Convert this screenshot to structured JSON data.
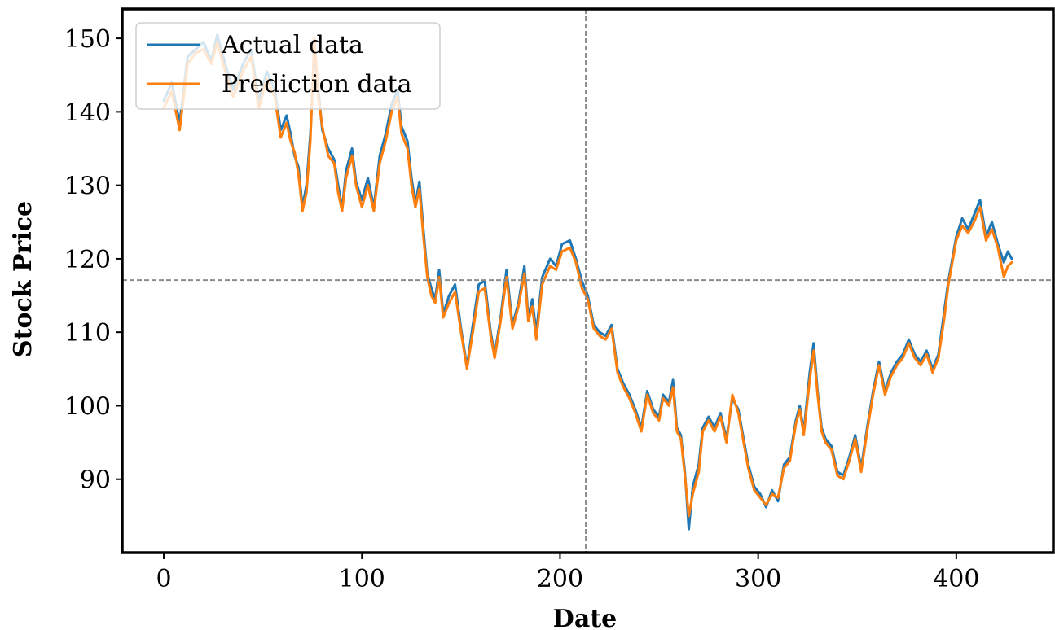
{
  "chart_data": {
    "type": "line",
    "title": "",
    "xlabel": "Date",
    "ylabel": "Stock Price",
    "xlim": [
      -21,
      449
    ],
    "ylim": [
      80,
      154
    ],
    "xticks": [
      0,
      100,
      200,
      300,
      400
    ],
    "yticks": [
      90,
      100,
      110,
      120,
      130,
      140,
      150
    ],
    "grid": false,
    "legend_position": "upper-left",
    "crosshair": {
      "x": 213,
      "y": 117.1
    },
    "series": [
      {
        "name": "Actual data",
        "color": "#1f77b4",
        "points": [
          [
            0,
            141.5
          ],
          [
            4,
            144.0
          ],
          [
            8,
            138.5
          ],
          [
            12,
            147.5
          ],
          [
            16,
            148.5
          ],
          [
            20,
            149.5
          ],
          [
            24,
            147.0
          ],
          [
            27,
            150.5
          ],
          [
            31,
            146.5
          ],
          [
            35,
            143.0
          ],
          [
            40,
            146.5
          ],
          [
            44,
            148.5
          ],
          [
            48,
            141.5
          ],
          [
            52,
            145.5
          ],
          [
            56,
            143.0
          ],
          [
            59,
            137.5
          ],
          [
            62,
            139.5
          ],
          [
            64,
            137.0
          ],
          [
            66,
            134.0
          ],
          [
            68,
            132.5
          ],
          [
            70,
            127.0
          ],
          [
            72,
            130.0
          ],
          [
            74,
            137.0
          ],
          [
            76,
            148.0
          ],
          [
            78,
            143.0
          ],
          [
            80,
            137.5
          ],
          [
            83,
            135.0
          ],
          [
            86,
            133.5
          ],
          [
            88,
            130.0
          ],
          [
            90,
            126.8
          ],
          [
            92,
            132.0
          ],
          [
            95,
            135.0
          ],
          [
            97,
            130.5
          ],
          [
            100,
            128.0
          ],
          [
            103,
            131.0
          ],
          [
            106,
            127.0
          ],
          [
            109,
            134.0
          ],
          [
            112,
            137.0
          ],
          [
            115,
            141.0
          ],
          [
            118,
            143.0
          ],
          [
            120,
            138.0
          ],
          [
            123,
            136.0
          ],
          [
            125,
            131.0
          ],
          [
            127,
            127.5
          ],
          [
            129,
            130.5
          ],
          [
            131,
            124.0
          ],
          [
            133,
            118.0
          ],
          [
            135,
            116.0
          ],
          [
            137,
            114.5
          ],
          [
            139,
            118.5
          ],
          [
            141,
            112.5
          ],
          [
            144,
            115.0
          ],
          [
            147,
            116.5
          ],
          [
            150,
            110.5
          ],
          [
            153,
            105.3
          ],
          [
            156,
            111.0
          ],
          [
            159,
            116.5
          ],
          [
            162,
            117.0
          ],
          [
            165,
            110.0
          ],
          [
            167,
            107.0
          ],
          [
            170,
            112.0
          ],
          [
            173,
            118.5
          ],
          [
            176,
            111.0
          ],
          [
            179,
            114.0
          ],
          [
            182,
            119.0
          ],
          [
            184,
            112.0
          ],
          [
            186,
            114.5
          ],
          [
            188,
            110.0
          ],
          [
            191,
            117.5
          ],
          [
            195,
            120.0
          ],
          [
            198,
            119.0
          ],
          [
            201,
            122.0
          ],
          [
            205,
            122.5
          ],
          [
            208,
            120.0
          ],
          [
            211,
            117.0
          ],
          [
            214,
            115.0
          ],
          [
            217,
            111.0
          ],
          [
            220,
            110.0
          ],
          [
            223,
            109.5
          ],
          [
            226,
            111.0
          ],
          [
            229,
            105.0
          ],
          [
            232,
            103.0
          ],
          [
            235,
            101.5
          ],
          [
            238,
            99.5
          ],
          [
            241,
            97.0
          ],
          [
            244,
            102.0
          ],
          [
            247,
            99.5
          ],
          [
            250,
            98.5
          ],
          [
            252,
            101.5
          ],
          [
            255,
            100.5
          ],
          [
            257,
            103.5
          ],
          [
            259,
            97.0
          ],
          [
            261,
            96.0
          ],
          [
            263,
            91.0
          ],
          [
            265,
            83.2
          ],
          [
            267,
            89.0
          ],
          [
            270,
            92.0
          ],
          [
            272,
            97.0
          ],
          [
            275,
            98.5
          ],
          [
            278,
            97.0
          ],
          [
            281,
            99.0
          ],
          [
            284,
            95.5
          ],
          [
            287,
            101.0
          ],
          [
            290,
            99.5
          ],
          [
            293,
            95.0
          ],
          [
            295,
            92.0
          ],
          [
            298,
            89.0
          ],
          [
            301,
            88.0
          ],
          [
            304,
            86.2
          ],
          [
            307,
            88.5
          ],
          [
            310,
            87.0
          ],
          [
            313,
            92.0
          ],
          [
            316,
            93.0
          ],
          [
            319,
            98.0
          ],
          [
            321,
            100.0
          ],
          [
            323,
            96.5
          ],
          [
            326,
            104.5
          ],
          [
            328,
            108.5
          ],
          [
            330,
            102.0
          ],
          [
            332,
            97.0
          ],
          [
            334,
            95.5
          ],
          [
            337,
            94.5
          ],
          [
            340,
            91.0
          ],
          [
            343,
            90.5
          ],
          [
            346,
            93.0
          ],
          [
            349,
            96.0
          ],
          [
            352,
            91.5
          ],
          [
            355,
            97.0
          ],
          [
            358,
            102.0
          ],
          [
            361,
            106.0
          ],
          [
            364,
            102.0
          ],
          [
            367,
            104.5
          ],
          [
            370,
            106.0
          ],
          [
            373,
            107.0
          ],
          [
            376,
            109.0
          ],
          [
            379,
            107.0
          ],
          [
            382,
            106.0
          ],
          [
            385,
            107.5
          ],
          [
            388,
            105.0
          ],
          [
            391,
            107.0
          ],
          [
            394,
            113.0
          ],
          [
            396,
            117.0
          ],
          [
            398,
            120.0
          ],
          [
            400,
            123.0
          ],
          [
            403,
            125.5
          ],
          [
            406,
            124.0
          ],
          [
            409,
            126.0
          ],
          [
            412,
            128.0
          ],
          [
            415,
            123.0
          ],
          [
            418,
            125.0
          ],
          [
            421,
            122.0
          ],
          [
            424,
            119.5
          ],
          [
            426,
            121.0
          ],
          [
            428,
            120.0
          ]
        ]
      },
      {
        "name": "Prediction data",
        "color": "#ff7f0e",
        "points": [
          [
            0,
            140.5
          ],
          [
            4,
            142.8
          ],
          [
            8,
            137.5
          ],
          [
            12,
            146.5
          ],
          [
            16,
            148.0
          ],
          [
            20,
            148.5
          ],
          [
            24,
            146.5
          ],
          [
            27,
            149.5
          ],
          [
            31,
            145.5
          ],
          [
            35,
            142.0
          ],
          [
            40,
            145.5
          ],
          [
            44,
            147.5
          ],
          [
            48,
            140.5
          ],
          [
            52,
            144.5
          ],
          [
            56,
            142.0
          ],
          [
            59,
            136.5
          ],
          [
            62,
            138.5
          ],
          [
            64,
            136.0
          ],
          [
            66,
            134.5
          ],
          [
            68,
            131.5
          ],
          [
            70,
            126.5
          ],
          [
            72,
            129.0
          ],
          [
            74,
            136.0
          ],
          [
            76,
            150.0
          ],
          [
            78,
            142.0
          ],
          [
            80,
            138.0
          ],
          [
            83,
            134.0
          ],
          [
            86,
            133.0
          ],
          [
            88,
            129.0
          ],
          [
            90,
            126.5
          ],
          [
            92,
            131.0
          ],
          [
            95,
            134.0
          ],
          [
            97,
            130.0
          ],
          [
            100,
            127.0
          ],
          [
            103,
            130.0
          ],
          [
            106,
            126.5
          ],
          [
            109,
            133.0
          ],
          [
            112,
            136.0
          ],
          [
            115,
            140.0
          ],
          [
            118,
            142.0
          ],
          [
            120,
            137.0
          ],
          [
            123,
            135.0
          ],
          [
            125,
            130.0
          ],
          [
            127,
            127.0
          ],
          [
            129,
            129.5
          ],
          [
            131,
            123.0
          ],
          [
            133,
            117.5
          ],
          [
            135,
            115.0
          ],
          [
            137,
            114.0
          ],
          [
            139,
            117.5
          ],
          [
            141,
            112.0
          ],
          [
            144,
            114.0
          ],
          [
            147,
            115.5
          ],
          [
            150,
            110.0
          ],
          [
            153,
            105.0
          ],
          [
            156,
            110.0
          ],
          [
            159,
            115.5
          ],
          [
            162,
            116.0
          ],
          [
            165,
            109.5
          ],
          [
            167,
            106.5
          ],
          [
            170,
            111.5
          ],
          [
            173,
            117.5
          ],
          [
            176,
            110.5
          ],
          [
            179,
            113.5
          ],
          [
            182,
            118.0
          ],
          [
            184,
            111.5
          ],
          [
            186,
            113.5
          ],
          [
            188,
            109.0
          ],
          [
            191,
            116.5
          ],
          [
            195,
            119.0
          ],
          [
            198,
            118.5
          ],
          [
            201,
            121.0
          ],
          [
            205,
            121.5
          ],
          [
            208,
            119.5
          ],
          [
            211,
            116.0
          ],
          [
            214,
            114.5
          ],
          [
            217,
            110.5
          ],
          [
            220,
            109.5
          ],
          [
            223,
            109.0
          ],
          [
            226,
            110.5
          ],
          [
            229,
            104.5
          ],
          [
            232,
            102.5
          ],
          [
            235,
            101.0
          ],
          [
            238,
            99.0
          ],
          [
            241,
            96.5
          ],
          [
            244,
            101.5
          ],
          [
            247,
            99.0
          ],
          [
            250,
            98.0
          ],
          [
            252,
            101.0
          ],
          [
            255,
            100.0
          ],
          [
            257,
            102.5
          ],
          [
            259,
            96.5
          ],
          [
            261,
            95.5
          ],
          [
            263,
            90.5
          ],
          [
            265,
            85.0
          ],
          [
            267,
            88.0
          ],
          [
            270,
            91.0
          ],
          [
            272,
            96.5
          ],
          [
            275,
            98.0
          ],
          [
            278,
            96.5
          ],
          [
            281,
            98.5
          ],
          [
            284,
            95.0
          ],
          [
            287,
            101.5
          ],
          [
            290,
            99.0
          ],
          [
            293,
            94.5
          ],
          [
            295,
            91.5
          ],
          [
            298,
            88.5
          ],
          [
            301,
            87.5
          ],
          [
            304,
            86.5
          ],
          [
            307,
            88.0
          ],
          [
            310,
            87.5
          ],
          [
            313,
            91.5
          ],
          [
            316,
            92.5
          ],
          [
            319,
            97.5
          ],
          [
            321,
            99.5
          ],
          [
            323,
            96.0
          ],
          [
            326,
            103.5
          ],
          [
            328,
            107.5
          ],
          [
            330,
            101.5
          ],
          [
            332,
            96.5
          ],
          [
            334,
            95.0
          ],
          [
            337,
            94.0
          ],
          [
            340,
            90.5
          ],
          [
            343,
            90.0
          ],
          [
            346,
            92.5
          ],
          [
            349,
            95.5
          ],
          [
            352,
            91.0
          ],
          [
            355,
            96.5
          ],
          [
            358,
            101.5
          ],
          [
            361,
            105.5
          ],
          [
            364,
            101.5
          ],
          [
            367,
            104.0
          ],
          [
            370,
            105.5
          ],
          [
            373,
            106.5
          ],
          [
            376,
            108.5
          ],
          [
            379,
            106.5
          ],
          [
            382,
            105.5
          ],
          [
            385,
            107.0
          ],
          [
            388,
            104.5
          ],
          [
            391,
            106.5
          ],
          [
            394,
            112.0
          ],
          [
            396,
            116.5
          ],
          [
            398,
            119.5
          ],
          [
            400,
            122.5
          ],
          [
            403,
            124.5
          ],
          [
            406,
            123.5
          ],
          [
            409,
            125.0
          ],
          [
            412,
            127.0
          ],
          [
            415,
            122.5
          ],
          [
            418,
            124.0
          ],
          [
            421,
            121.5
          ],
          [
            424,
            117.5
          ],
          [
            426,
            119.0
          ],
          [
            428,
            119.5
          ]
        ]
      }
    ]
  }
}
